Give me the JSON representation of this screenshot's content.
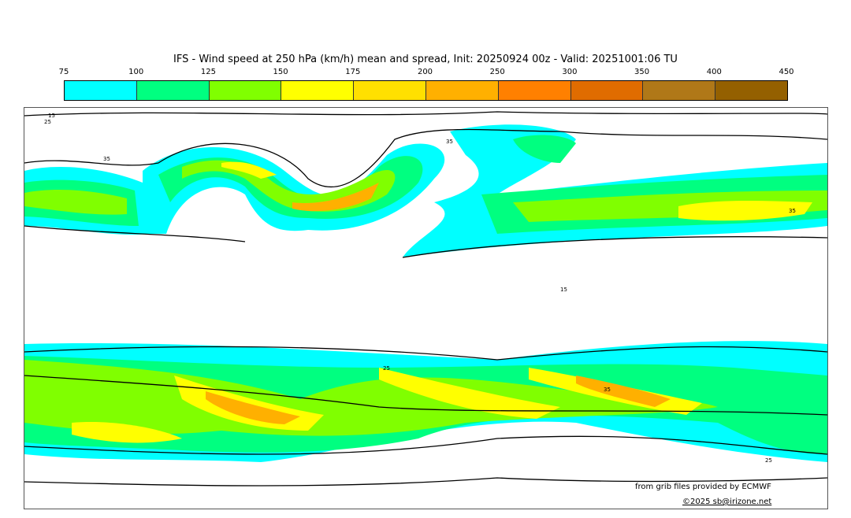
{
  "title": "IFS - Wind speed at 250 hPa (km/h) mean and spread, Init: 20250924 00z - Valid: 20251001:06 TU",
  "colorbar": {
    "ticks": [
      "75",
      "100",
      "125",
      "150",
      "175",
      "200",
      "250",
      "300",
      "350",
      "400",
      "450"
    ],
    "colors": [
      "#00ffff",
      "#00ff80",
      "#80ff00",
      "#ffff00",
      "#ffe000",
      "#ffb000",
      "#ff8000",
      "#e06c00",
      "#b07818",
      "#946000"
    ]
  },
  "contour_labels": [
    "15",
    "25",
    "35"
  ],
  "credits": {
    "source": "from grib files provided by ECMWF",
    "copyright": "©2025 sb@irizone.net"
  }
}
